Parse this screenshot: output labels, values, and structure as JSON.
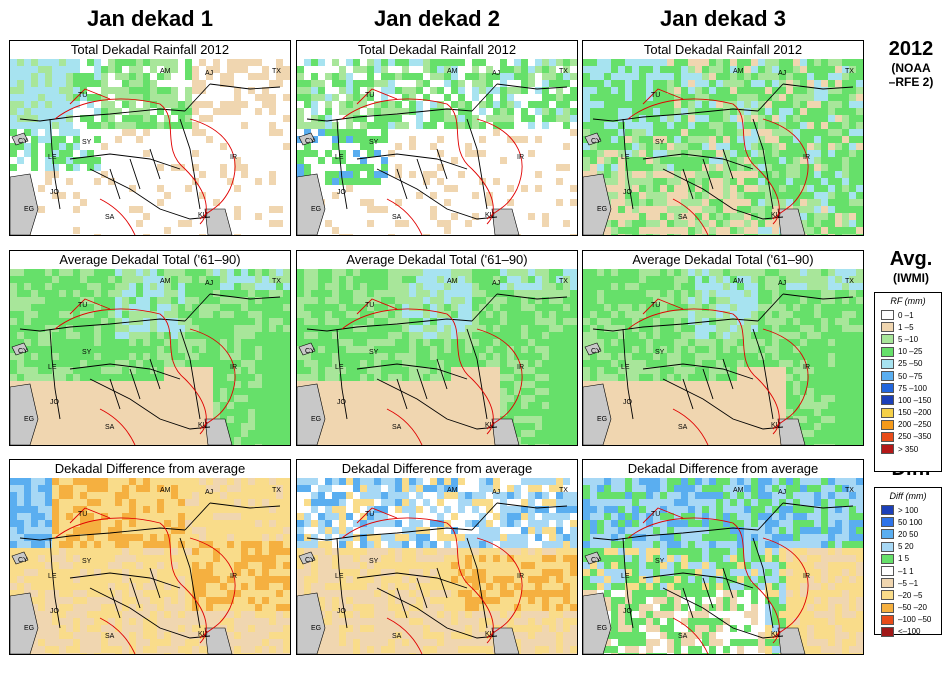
{
  "columns": [
    "Jan dekad 1",
    "Jan dekad 2",
    "Jan dekad 3"
  ],
  "rows": [
    {
      "title": "Total Dekadal Rainfall 2012",
      "type": "rain2012"
    },
    {
      "title": "Average Dekadal Total ('61–90)",
      "type": "avg"
    },
    {
      "title": "Dekadal Difference from average",
      "type": "diff"
    }
  ],
  "row_labels": [
    {
      "big": "2012",
      "small": [
        "(NOAA",
        "–RFE 2)"
      ]
    },
    {
      "big": "Avg.",
      "small": [
        "(IWMI)"
      ]
    },
    {
      "big": "Diff.",
      "small": []
    }
  ],
  "map_labels": [
    "AM",
    "AJ",
    "TX",
    "TU",
    "SY",
    "IR",
    "LE",
    "JO",
    "EG",
    "SA",
    "KU",
    "CY"
  ],
  "rf_legend": {
    "title": "RF (mm)",
    "items": [
      {
        "label": "0 –1",
        "color": "#ffffff"
      },
      {
        "label": "1 –5",
        "color": "#f0d6b0"
      },
      {
        "label": "5 –10",
        "color": "#a8e69a"
      },
      {
        "label": "10 –25",
        "color": "#66e06a"
      },
      {
        "label": "25 –50",
        "color": "#a7e3f0"
      },
      {
        "label": "50 –75",
        "color": "#5aaef0"
      },
      {
        "label": "75 –100",
        "color": "#2266dd"
      },
      {
        "label": "100 –150",
        "color": "#1b3fb8"
      },
      {
        "label": "150 –200",
        "color": "#f5d048"
      },
      {
        "label": "200 –250",
        "color": "#f59a1a"
      },
      {
        "label": "250 –350",
        "color": "#e84c1a"
      },
      {
        "label": "> 350",
        "color": "#b41818"
      }
    ]
  },
  "diff_legend": {
    "title": "Diff (mm)",
    "items": [
      {
        "label": "> 100",
        "color": "#1b3fb8"
      },
      {
        "label": "50  100",
        "color": "#2d73e8"
      },
      {
        "label": "20   50",
        "color": "#5aaef0"
      },
      {
        "label": "5   20",
        "color": "#a7d8f5"
      },
      {
        "label": "1    5",
        "color": "#66e06a"
      },
      {
        "label": "–1    1",
        "color": "#ffffff"
      },
      {
        "label": "–5  –1",
        "color": "#f0d6b0"
      },
      {
        "label": "–20  –5",
        "color": "#f9dc8a"
      },
      {
        "label": "–50 –20",
        "color": "#f5b040"
      },
      {
        "label": "–100 –50",
        "color": "#e84c1a"
      },
      {
        "label": "<–100",
        "color": "#a01818"
      }
    ]
  },
  "colors": {
    "land_gray": "#c8c8c8",
    "water": "#ffffff",
    "border_country": "#000000",
    "border_admin": "#e00000"
  }
}
